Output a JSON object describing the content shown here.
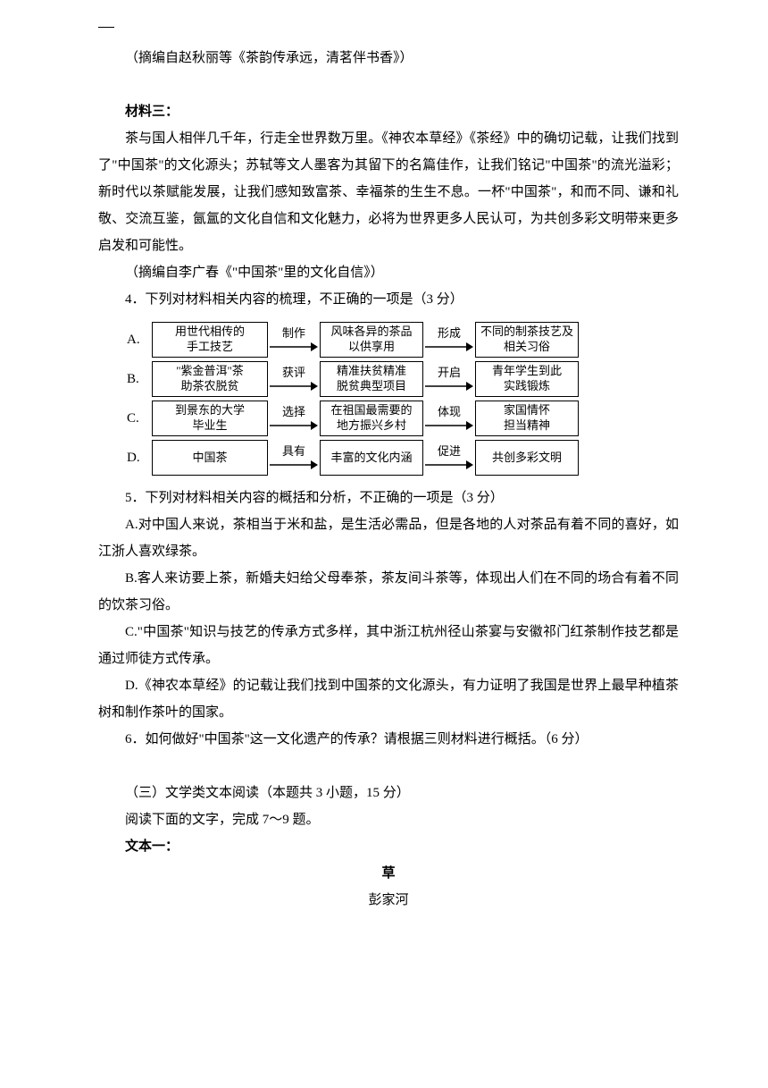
{
  "citation1": "（摘编自赵秋丽等《茶韵传承远，清茗伴书香》）",
  "section3_heading": "材料三：",
  "p3_1": "茶与国人相伴几千年，行走全世界数万里。《神农本草经》《茶经》中的确切记载，让我们找到了\"中国茶\"的文化源头；苏轼等文人墨客为其留下的名篇佳作，让我们铭记\"中国茶\"的流光溢彩；新时代以茶赋能发展，让我们感知致富茶、幸福茶的生生不息。一杯\"中国茶\"，和而不同、谦和礼敬、交流互鉴，氤氲的文化自信和文化魅力，必将为世界更多人民认可，为共创多彩文明带来更多启发和可能性。",
  "citation3": "（摘编自李广春《\"中国茶\"里的文化自信》）",
  "q4": "4．下列对材料相关内容的梳理，不正确的一项是（3 分）",
  "diagram": {
    "rows": [
      {
        "label": "A.",
        "b1": "用世代相传的\n手工技艺",
        "a1": "制作",
        "b2": "风味各异的茶品\n以供享用",
        "a2": "形成",
        "b3": "不同的制茶技艺及\n相关习俗"
      },
      {
        "label": "B.",
        "b1": "\"紫金普洱\"茶\n助茶农脱贫",
        "a1": "获评",
        "b2": "精准扶贫精准\n脱贫典型项目",
        "a2": "开启",
        "b3": "青年学生到此\n实践锻炼"
      },
      {
        "label": "C.",
        "b1": "到景东的大学\n毕业生",
        "a1": "选择",
        "b2": "在祖国最需要的\n地方振兴乡村",
        "a2": "体现",
        "b3": "家国情怀\n担当精神"
      },
      {
        "label": "D.",
        "b1": "中国茶",
        "a1": "具有",
        "b2": "丰富的文化内涵",
        "a2": "促进",
        "b3": "共创多彩文明"
      }
    ]
  },
  "q5": "5．下列对材料相关内容的概括和分析，不正确的一项是（3 分）",
  "q5a": "A.对中国人来说，茶相当于米和盐，是生活必需品，但是各地的人对茶品有着不同的喜好，如江浙人喜欢绿茶。",
  "q5b": "B.客人来访要上茶，新婚夫妇给父母奉茶，茶友间斗茶等，体现出人们在不同的场合有着不同的饮茶习俗。",
  "q5c": "C.\"中国茶\"知识与技艺的传承方式多样，其中浙江杭州径山茶宴与安徽祁门红茶制作技艺都是通过师徒方式传承。",
  "q5d": "D.《神农本草经》的记载让我们找到中国茶的文化源头，有力证明了我国是世界上最早种植茶树和制作茶叶的国家。",
  "q6": "6．如何做好\"中国茶\"这一文化遗产的传承？请根据三则材料进行概括。（6 分）",
  "section_lit": "（三）文学类文本阅读（本题共 3 小题，15 分）",
  "lit_instruction": "阅读下面的文字，完成 7～9 题。",
  "text1_heading": "文本一：",
  "title": "草",
  "author": "彭家河"
}
